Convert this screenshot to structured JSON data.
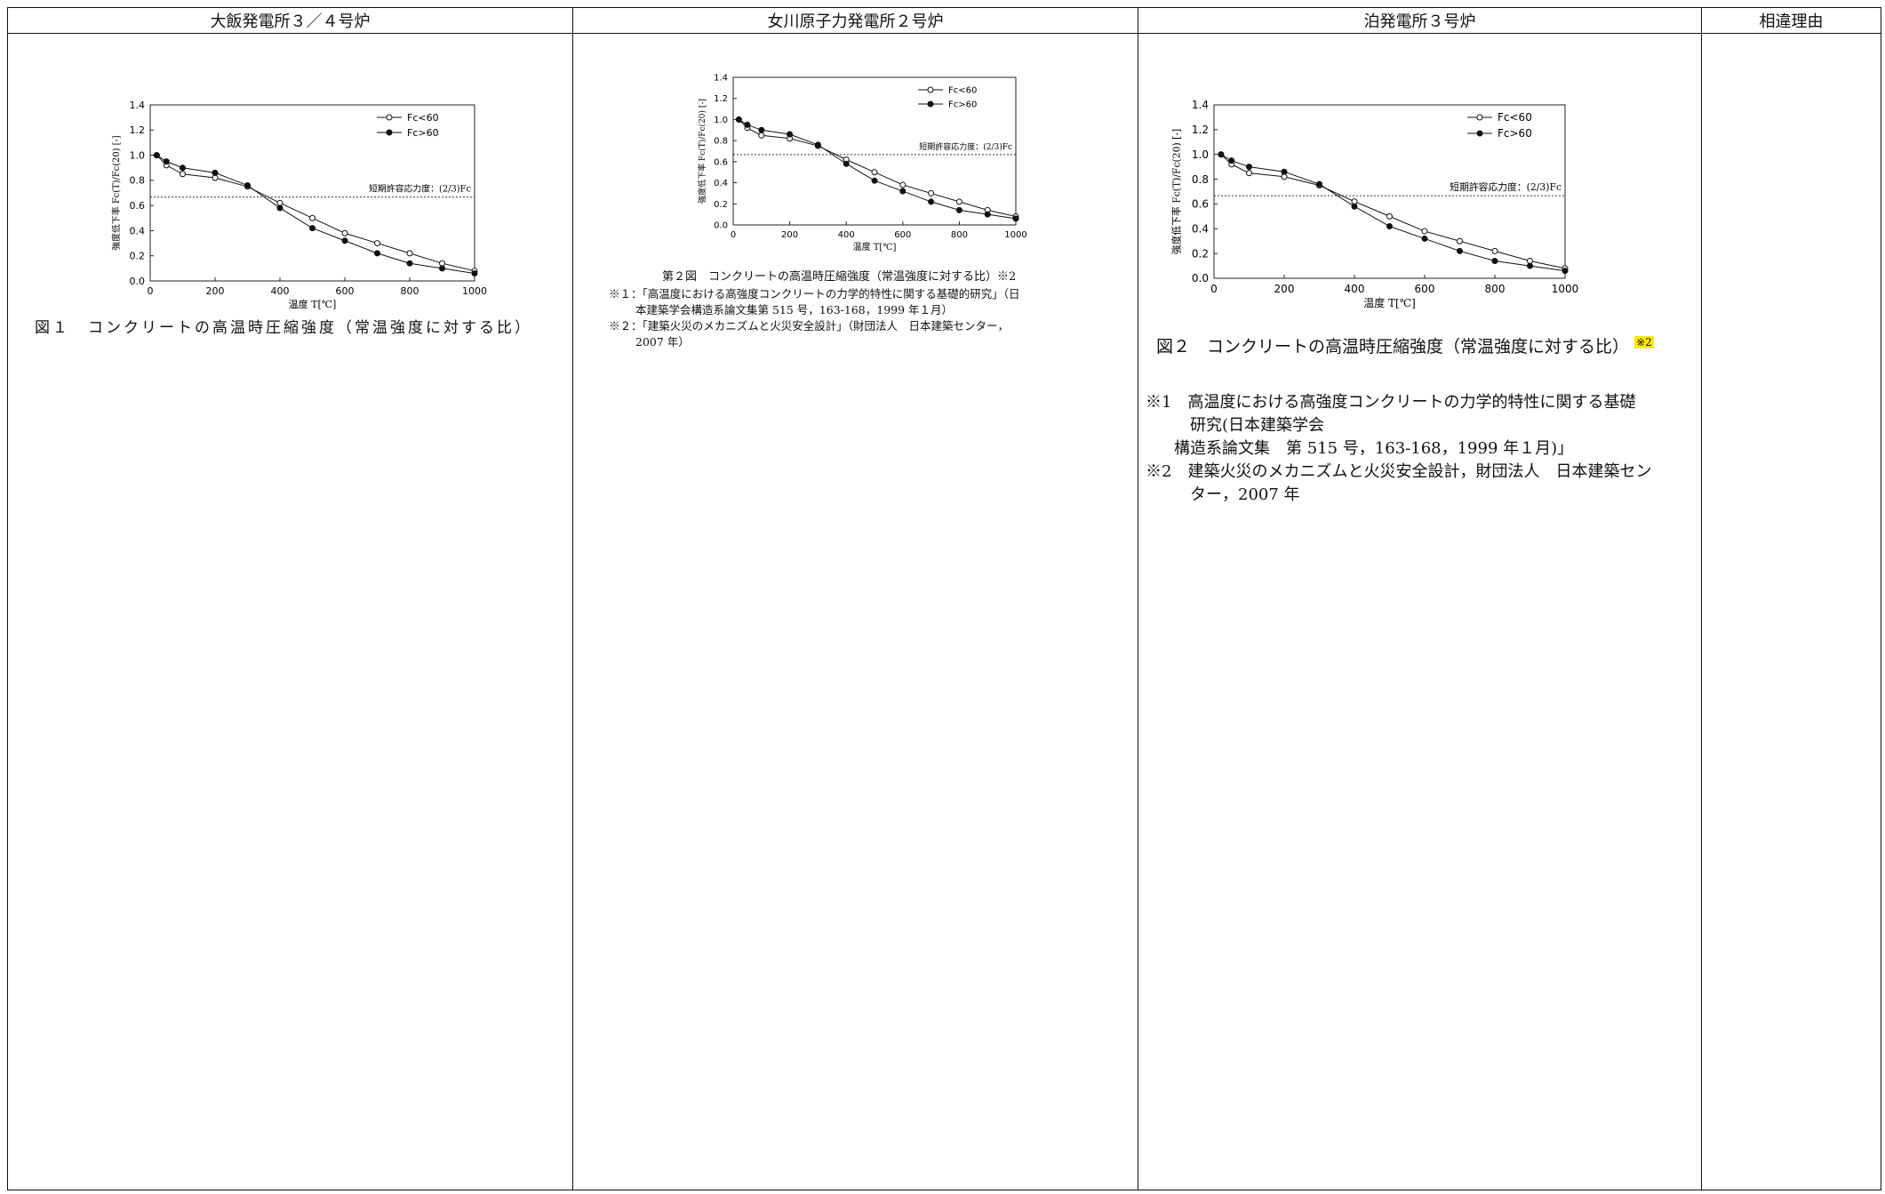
{
  "headers": [
    "大飯発電所３／４号炉",
    "女川原子力発電所２号炉",
    "泊発電所３号炉",
    "相違理由"
  ],
  "col1": {
    "caption": "図１　コンクリートの高温時圧縮強度（常温強度に対する比）"
  },
  "col2": {
    "caption": "第２図　コンクリートの高温時圧縮強度（常温強度に対する比）※2",
    "note1_line1": "※１：「高温度における高強度コンクリートの力学的特性に関する基礎的研究」（日",
    "note1_line2": "本建築学会構造系論文集第 515 号，163-168，1999 年１月）",
    "note2_line1": "※２：「建築火災のメカニズムと火災安全設計」（財団法人　日本建築センター，",
    "note2_line2": "2007 年）"
  },
  "col3": {
    "caption_main": "図２　コンクリートの高温時圧縮強度（常温強度に対する比）",
    "caption_mark": "※2",
    "note1_line1": "※1　高温度における高強度コンクリートの力学的特性に関する基礎",
    "note1_line2": "研究(日本建築学会",
    "note1_line3": "構造系論文集　第 515 号，163-168，1999 年１月)」",
    "note2_line1": "※2　建築火災のメカニズムと火災安全設計，財団法人　日本建築セン",
    "note2_line2": "ター，2007 年"
  },
  "chart_data": {
    "type": "line",
    "xlabel": "温度 T[℃]",
    "ylabel": "強度低下率 Fc(T)/Fc(20) [-]",
    "xlim": [
      0,
      1000
    ],
    "ylim": [
      0,
      1.4
    ],
    "xticks": [
      "0",
      "200",
      "400",
      "600",
      "800",
      "1000"
    ],
    "yticks": [
      "0.0",
      "0.2",
      "0.4",
      "0.6",
      "0.8",
      "1.0",
      "1.2",
      "1.4"
    ],
    "reference_label": "短期許容応力度：(2/3)Fc",
    "reference_value": 0.667,
    "series": [
      {
        "name": "Fc<60",
        "marker": "open",
        "x": [
          20,
          50,
          100,
          200,
          300,
          400,
          500,
          600,
          700,
          800,
          900,
          1000
        ],
        "y": [
          1.0,
          0.92,
          0.85,
          0.82,
          0.75,
          0.62,
          0.5,
          0.38,
          0.3,
          0.22,
          0.14,
          0.08
        ]
      },
      {
        "name": "Fc>60",
        "marker": "filled",
        "x": [
          20,
          50,
          100,
          200,
          300,
          400,
          500,
          600,
          700,
          800,
          900,
          1000
        ],
        "y": [
          1.0,
          0.95,
          0.9,
          0.86,
          0.76,
          0.58,
          0.42,
          0.32,
          0.22,
          0.14,
          0.1,
          0.06
        ]
      }
    ]
  }
}
